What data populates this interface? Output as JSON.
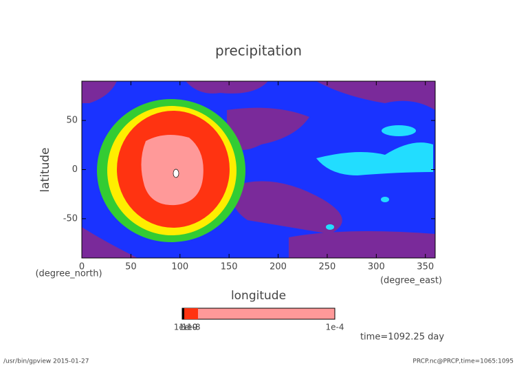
{
  "chart_data": {
    "type": "contour",
    "title": "precipitation",
    "xlabel": "longitude",
    "ylabel": "latitude",
    "x_units": "(degree_east)",
    "y_units": "(degree_north)",
    "xlim": [
      0,
      360
    ],
    "ylim": [
      -90,
      90
    ],
    "xticks": [
      0,
      50,
      100,
      150,
      200,
      250,
      300,
      350
    ],
    "yticks": [
      -50,
      0,
      50
    ],
    "colorbar": {
      "labels": [
        "1e-10",
        "1e-9",
        "1e-8",
        "1e-4"
      ]
    },
    "annotation": "time=1092.25 day",
    "footer_left": "/usr/bin/gpview  2015-01-27",
    "footer_right": "PRCP.nc@PRCP,time=1065:1095"
  }
}
